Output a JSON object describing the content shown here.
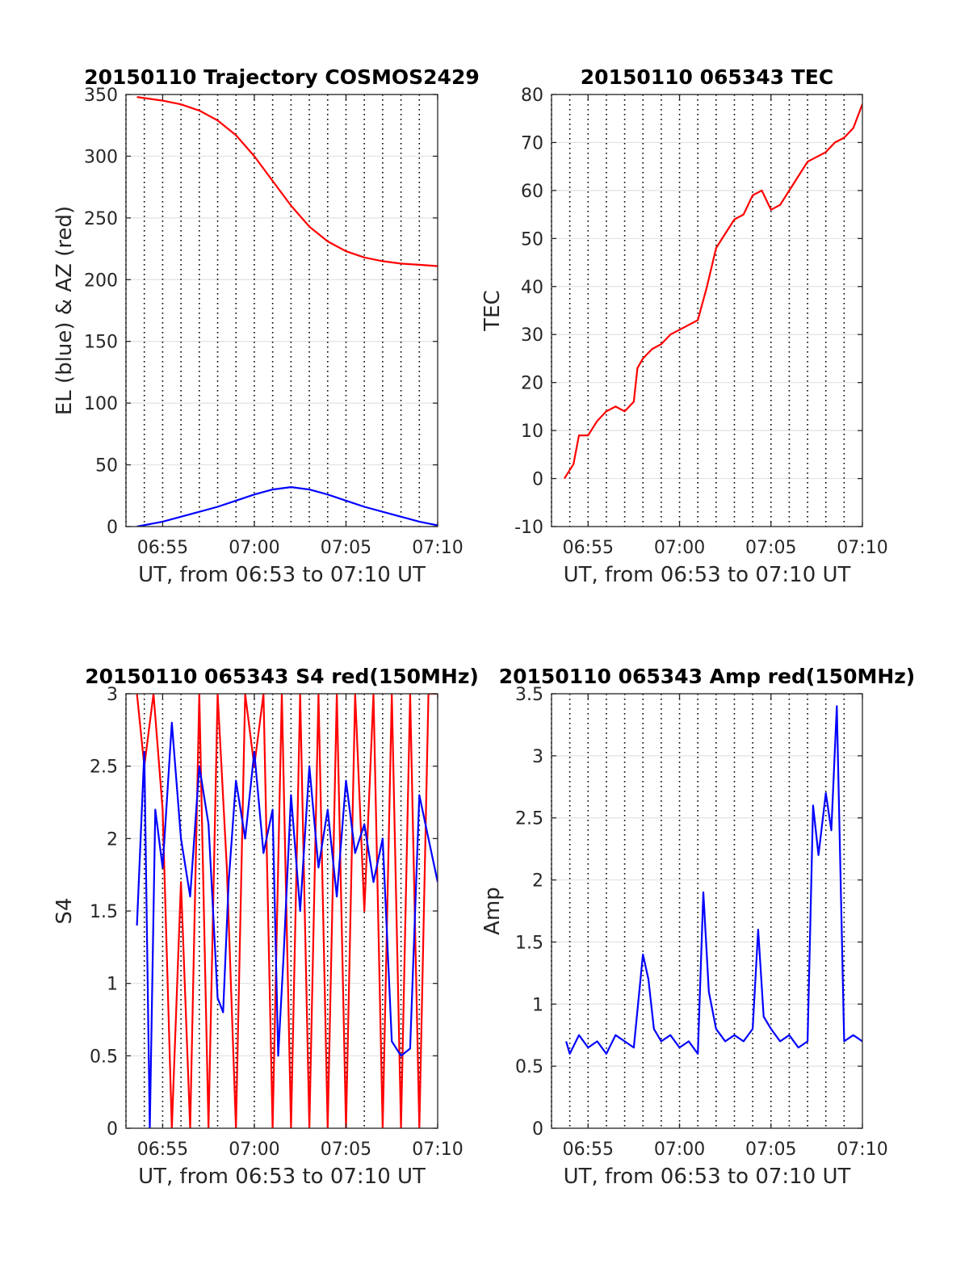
{
  "figure": {
    "background": "#ffffff"
  },
  "chart_data": [
    {
      "id": "trajectory",
      "type": "line",
      "title": "20150110 Trajectory COSMOS2429",
      "xlabel": "UT, from 06:53 to 07:10 UT",
      "ylabel": "EL (blue) & AZ (red)",
      "xlim": [
        "06:53",
        "07:10"
      ],
      "ylim": [
        0,
        350
      ],
      "xticks": [
        "06:55",
        "07:00",
        "07:05",
        "07:10"
      ],
      "yticks": [
        0,
        50,
        100,
        150,
        200,
        250,
        300,
        350
      ],
      "grid": true,
      "series": [
        {
          "color": "#ff0000",
          "x": [
            "06:53.6",
            "06:55",
            "06:56",
            "06:57",
            "06:58",
            "06:59",
            "07:00",
            "07:01",
            "07:02",
            "07:03",
            "07:04",
            "07:05",
            "07:06",
            "07:07",
            "07:08",
            "07:09",
            "07:10"
          ],
          "values": [
            348,
            345,
            342,
            337,
            329,
            317,
            300,
            280,
            260,
            243,
            231,
            223,
            218,
            215,
            213,
            212,
            211
          ]
        },
        {
          "color": "#0000ff",
          "x": [
            "06:53.6",
            "06:55",
            "06:56",
            "06:57",
            "06:58",
            "06:59",
            "07:00",
            "07:01",
            "07:02",
            "07:03",
            "07:04",
            "07:05",
            "07:06",
            "07:07",
            "07:08",
            "07:09",
            "07:10"
          ],
          "values": [
            0,
            4,
            8,
            12,
            16,
            21,
            26,
            30,
            32,
            30,
            26,
            21,
            16,
            12,
            8,
            4,
            1
          ]
        }
      ]
    },
    {
      "id": "tec",
      "type": "line",
      "title": "20150110 065343 TEC",
      "xlabel": "UT, from 06:53 to 07:10 UT",
      "ylabel": "TEC",
      "xlim": [
        "06:53",
        "07:10"
      ],
      "ylim": [
        -10,
        80
      ],
      "xticks": [
        "06:55",
        "07:00",
        "07:05",
        "07:10"
      ],
      "yticks": [
        -10,
        0,
        10,
        20,
        30,
        40,
        50,
        60,
        70,
        80
      ],
      "grid": true,
      "series": [
        {
          "color": "#ff0000",
          "x": [
            "06:53.7",
            "06:54.2",
            "06:54.5",
            "06:55",
            "06:55.5",
            "06:56",
            "06:56.5",
            "06:57",
            "06:57.5",
            "06:57.7",
            "06:58",
            "06:58.5",
            "06:59",
            "06:59.5",
            "07:00",
            "07:00.5",
            "07:01",
            "07:01.5",
            "07:02",
            "07:02.5",
            "07:03",
            "07:03.5",
            "07:04",
            "07:04.5",
            "07:05",
            "07:05.5",
            "07:06",
            "07:06.5",
            "07:07",
            "07:07.5",
            "07:08",
            "07:08.5",
            "07:09",
            "07:09.5",
            "07:10"
          ],
          "values": [
            0,
            3,
            9,
            9,
            12,
            14,
            15,
            14,
            16,
            23,
            25,
            27,
            28,
            30,
            31,
            32,
            33,
            40,
            48,
            51,
            54,
            55,
            59,
            60,
            56,
            57,
            60,
            63,
            66,
            67,
            68,
            70,
            71,
            73,
            78
          ]
        }
      ]
    },
    {
      "id": "s4",
      "type": "line",
      "title": "20150110 065343 S4 red(150MHz)",
      "xlabel": "UT, from 06:53 to 07:10 UT",
      "ylabel": "S4",
      "xlim": [
        "06:53",
        "07:10"
      ],
      "ylim": [
        0,
        3
      ],
      "xticks": [
        "06:55",
        "07:00",
        "07:05",
        "07:10"
      ],
      "yticks": [
        0,
        0.5,
        1,
        1.5,
        2,
        2.5,
        3
      ],
      "grid": true,
      "series": [
        {
          "color": "#ff0000",
          "x": [
            "06:53.6",
            "06:54",
            "06:54.5",
            "06:55",
            "06:55.5",
            "06:56",
            "06:56.5",
            "06:57",
            "06:57.5",
            "06:58",
            "06:58.5",
            "06:59",
            "06:59.5",
            "07:00",
            "07:00.5",
            "07:01",
            "07:01.5",
            "07:02",
            "07:02.5",
            "07:03",
            "07:03.5",
            "07:04",
            "07:04.5",
            "07:05",
            "07:05.5",
            "07:06",
            "07:06.5",
            "07:07",
            "07:07.5",
            "07:08",
            "07:08.5",
            "07:09",
            "07:09.5",
            "07:10"
          ],
          "values": [
            3,
            2.5,
            3,
            2.2,
            0,
            1.7,
            0,
            3,
            0,
            3,
            1.8,
            0,
            3,
            2.5,
            3,
            0,
            3,
            0,
            3,
            0,
            3,
            0,
            3,
            0,
            3,
            1.5,
            3,
            0,
            3,
            0,
            3,
            0,
            3,
            3
          ]
        },
        {
          "color": "#0000ff",
          "x": [
            "06:53.6",
            "06:54",
            "06:54.3",
            "06:54.6",
            "06:55",
            "06:55.5",
            "06:56",
            "06:56.5",
            "06:57",
            "06:57.5",
            "06:58",
            "06:58.3",
            "06:58.6",
            "06:59",
            "06:59.5",
            "07:00",
            "07:00.5",
            "07:01",
            "07:01.3",
            "07:01.6",
            "07:02",
            "07:02.5",
            "07:03",
            "07:03.5",
            "07:04",
            "07:04.5",
            "07:05",
            "07:05.5",
            "07:06",
            "07:06.5",
            "07:07",
            "07:07.5",
            "07:08",
            "07:08.5",
            "07:09",
            "07:09.5",
            "07:10"
          ],
          "values": [
            1.4,
            2.6,
            0,
            2.2,
            1.8,
            2.8,
            2.0,
            1.6,
            2.5,
            2.1,
            0.9,
            0.8,
            1.7,
            2.4,
            2.0,
            2.6,
            1.9,
            2.2,
            0.5,
            1.2,
            2.3,
            1.5,
            2.5,
            1.8,
            2.2,
            1.6,
            2.4,
            1.9,
            2.1,
            1.7,
            2.0,
            0.6,
            0.5,
            0.55,
            2.3,
            2.0,
            1.7
          ]
        }
      ]
    },
    {
      "id": "amp",
      "type": "line",
      "title": "20150110 065343 Amp red(150MHz)",
      "xlabel": "UT, from 06:53 to 07:10 UT",
      "ylabel": "Amp",
      "xlim": [
        "06:53",
        "07:10"
      ],
      "ylim": [
        0,
        3.5
      ],
      "xticks": [
        "06:55",
        "07:00",
        "07:05",
        "07:10"
      ],
      "yticks": [
        0,
        0.5,
        1,
        1.5,
        2,
        2.5,
        3,
        3.5
      ],
      "grid": true,
      "series": [
        {
          "color": "#0000ff",
          "x": [
            "06:53.8",
            "06:54",
            "06:54.5",
            "06:55",
            "06:55.5",
            "06:56",
            "06:56.5",
            "06:57",
            "06:57.5",
            "06:58",
            "06:58.3",
            "06:58.6",
            "06:59",
            "06:59.5",
            "07:00",
            "07:00.5",
            "07:01",
            "07:01.3",
            "07:01.6",
            "07:02",
            "07:02.5",
            "07:03",
            "07:03.5",
            "07:04",
            "07:04.3",
            "07:04.6",
            "07:05",
            "07:05.5",
            "07:06",
            "07:06.5",
            "07:07",
            "07:07.3",
            "07:07.6",
            "07:08",
            "07:08.3",
            "07:08.6",
            "07:09",
            "07:09.5",
            "07:10"
          ],
          "values": [
            0.7,
            0.6,
            0.75,
            0.65,
            0.7,
            0.6,
            0.75,
            0.7,
            0.65,
            1.4,
            1.2,
            0.8,
            0.7,
            0.75,
            0.65,
            0.7,
            0.6,
            1.9,
            1.1,
            0.8,
            0.7,
            0.75,
            0.7,
            0.8,
            1.6,
            0.9,
            0.8,
            0.7,
            0.75,
            0.65,
            0.7,
            2.6,
            2.2,
            2.7,
            2.4,
            3.4,
            0.7,
            0.75,
            0.7
          ]
        }
      ]
    }
  ]
}
